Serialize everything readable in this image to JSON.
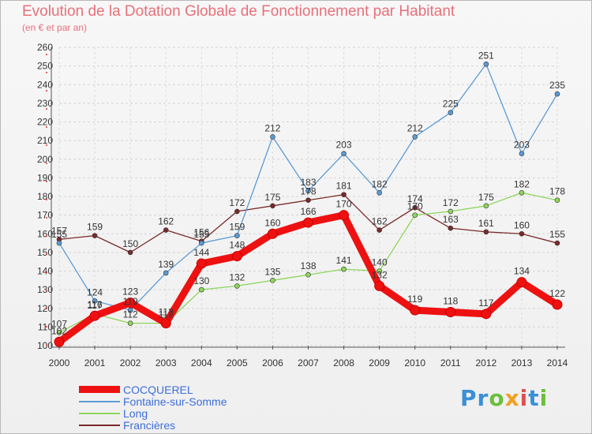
{
  "title": "Evolution de la Dotation Globale de Fonctionnement par Habitant",
  "subtitle": "(en € et par an)",
  "brand": {
    "text": "Proxiti",
    "letters": [
      "P",
      "r",
      "o",
      "x",
      "i",
      "t",
      "i"
    ],
    "colors": [
      "#3a8fd6",
      "#3a8fd6",
      "#6cbf3a",
      "#f0a020",
      "#e05050",
      "#3a8fd6",
      "#6cbf3a"
    ]
  },
  "chart_data": {
    "type": "line",
    "title": "Evolution de la Dotation Globale de Fonctionnement par Habitant",
    "ylabel": "(en € et par an)",
    "xlabel": "",
    "ylim": [
      100,
      260
    ],
    "yticks": [
      100,
      110,
      120,
      130,
      140,
      150,
      160,
      170,
      180,
      190,
      200,
      210,
      220,
      230,
      240,
      250,
      260
    ],
    "categories": [
      "2000",
      "2001",
      "2002",
      "2003",
      "2004",
      "2005",
      "2006",
      "2007",
      "2008",
      "2009",
      "2010",
      "2011",
      "2012",
      "2013",
      "2014"
    ],
    "legend_position": "bottom-left",
    "series": [
      {
        "name": "Francières",
        "color": "#7a2a2a",
        "width": 1.3,
        "values": [
          157,
          159,
          150,
          162,
          156,
          172,
          175,
          178,
          181,
          162,
          174,
          163,
          161,
          160,
          155
        ],
        "labels": [
          "157",
          "159",
          "150",
          "162",
          "156",
          "172",
          "175",
          "178",
          "181",
          "162",
          "174",
          "163",
          "161",
          "160",
          "155"
        ]
      },
      {
        "name": "Long",
        "color": "#8ed65a",
        "width": 1.3,
        "values": [
          107,
          117,
          112,
          112,
          130,
          132,
          135,
          138,
          141,
          140,
          170,
          172,
          175,
          182,
          178
        ],
        "labels": [
          "107",
          "117",
          "112",
          "112",
          "130",
          "132",
          "135",
          "138",
          "141",
          "140",
          "170",
          "172",
          "175",
          "182",
          "178"
        ]
      },
      {
        "name": "Fontaine-sur-Somme",
        "color": "#5b9bd5",
        "width": 1.3,
        "values": [
          155,
          124,
          119,
          139,
          155,
          159,
          212,
          183,
          203,
          182,
          212,
          225,
          251,
          203,
          235
        ],
        "labels": [
          "155",
          "124",
          "119",
          "139",
          "155",
          "159",
          "212",
          "183",
          "203",
          "182",
          "212",
          "225",
          "251",
          "203",
          "235"
        ]
      },
      {
        "name": "COCQUEREL",
        "color": "#ee1111",
        "width": 9,
        "values": [
          102,
          116,
          123,
          112,
          144,
          148,
          160,
          166,
          170,
          132,
          119,
          118,
          117,
          134,
          122
        ],
        "labels": [
          "102",
          "116",
          "123",
          "112",
          "144",
          "148",
          "160",
          "166",
          "170",
          "132",
          "119",
          "118",
          "117",
          "134",
          "122"
        ]
      }
    ],
    "legend_order": [
      "COCQUEREL",
      "Fontaine-sur-Somme",
      "Long",
      "Francières"
    ]
  }
}
